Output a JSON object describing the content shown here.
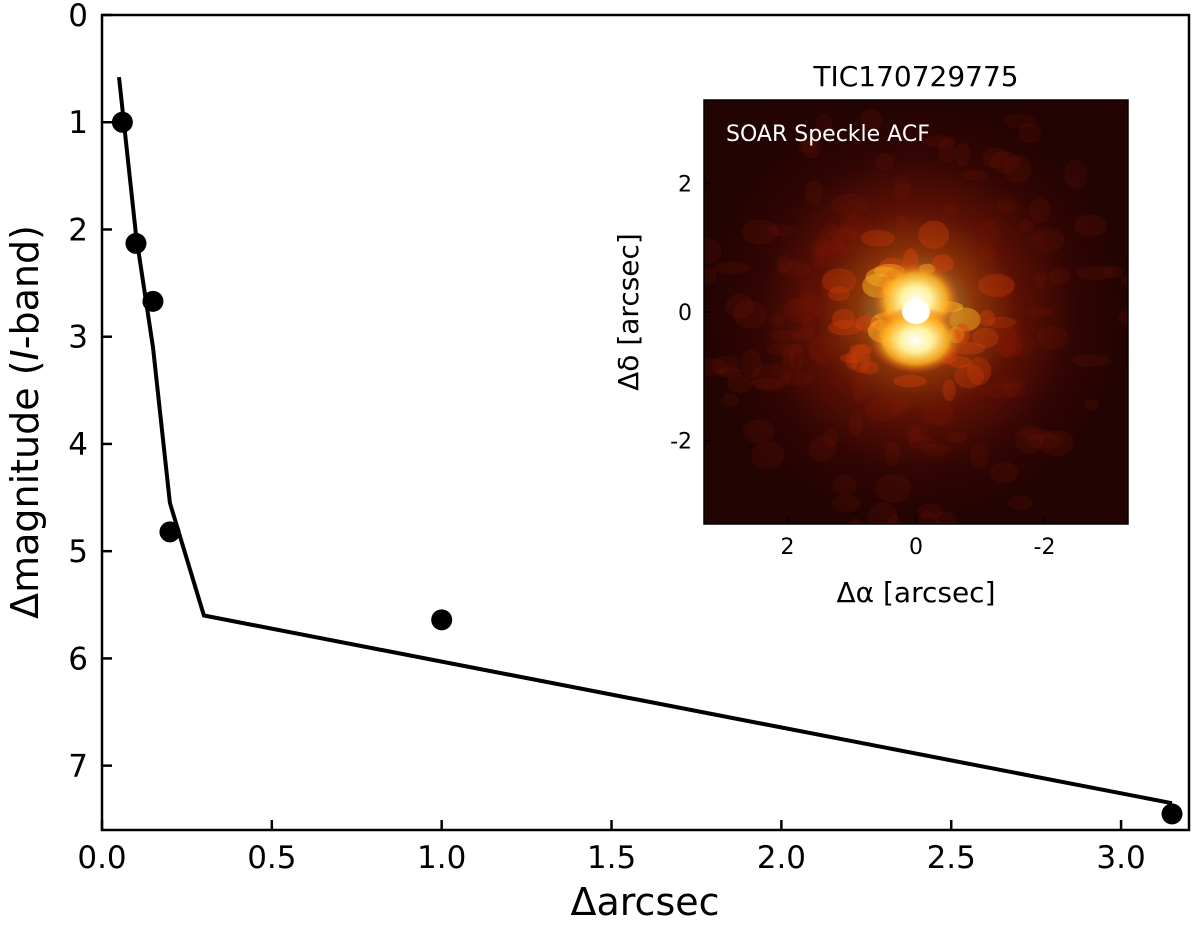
{
  "chart_data": {
    "type": "line",
    "xlabel": "Δarcsec",
    "ylabel": "Δmagnitude (I-band)",
    "ylabel_parts": [
      "Δmagnitude (",
      "I",
      "-band)"
    ],
    "xlim": [
      0.0,
      3.2
    ],
    "ylim": [
      7.6,
      0
    ],
    "y_inverted": true,
    "xticks": [
      0.0,
      0.5,
      1.0,
      1.5,
      2.0,
      2.5,
      3.0
    ],
    "xtick_labels": [
      "0.0",
      "0.5",
      "1.0",
      "1.5",
      "2.0",
      "2.5",
      "3.0"
    ],
    "yticks": [
      0,
      1,
      2,
      3,
      4,
      5,
      6,
      7
    ],
    "ytick_labels": [
      "0",
      "1",
      "2",
      "3",
      "4",
      "5",
      "6",
      "7"
    ],
    "grid": false,
    "series": [
      {
        "kind": "line",
        "color": "#000000",
        "x": [
          0.05,
          0.1,
          0.15,
          0.2,
          0.3,
          3.15
        ],
        "y": [
          0.58,
          2.05,
          3.1,
          4.55,
          5.6,
          7.35
        ]
      },
      {
        "kind": "scatter",
        "color": "#000000",
        "x": [
          0.06,
          0.1,
          0.15,
          0.2,
          1.0,
          3.15
        ],
        "y": [
          1.0,
          2.13,
          2.67,
          4.82,
          5.64,
          7.45
        ]
      }
    ],
    "inset": {
      "type": "heatmap",
      "title": "TIC170729775",
      "overlay_label": "SOAR Speckle ACF",
      "xlabel": "Δα [arcsec]",
      "ylabel": "Δδ [arcsec]",
      "xlim": [
        3.3,
        -3.3
      ],
      "ylim": [
        -3.3,
        3.3
      ],
      "xticks": [
        2,
        0,
        -2
      ],
      "xtick_labels": [
        "2",
        "0",
        "-2"
      ],
      "yticks": [
        2,
        0,
        -2
      ],
      "ytick_labels": [
        "2",
        "0",
        "-2"
      ],
      "colormap": "hot",
      "colors": [
        "#000000",
        "#3a0603",
        "#8a1a05",
        "#d8400a",
        "#ffb020",
        "#ffffff"
      ]
    }
  }
}
